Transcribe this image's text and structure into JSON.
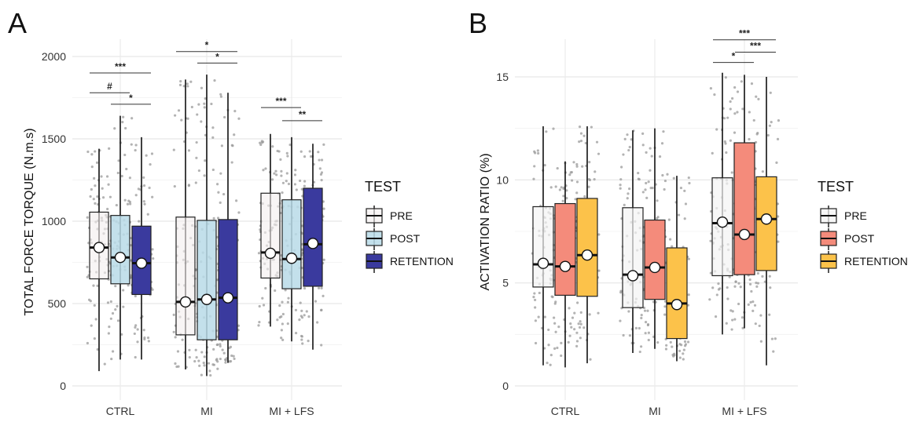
{
  "chart_data": [
    {
      "type": "box",
      "panel_label": "A",
      "ylabel": "TOTAL FORCE TORQUE (N.m.s)",
      "xlabel": "",
      "ylim": [
        0,
        2000
      ],
      "y_ticks": [
        0,
        500,
        1000,
        1500,
        2000
      ],
      "categories": [
        "CTRL",
        "MI",
        "MI + LFS"
      ],
      "legend_title": "TEST",
      "legend_position": "right",
      "series": [
        {
          "name": "PRE",
          "color": "#f3eeee",
          "fill_opacity": 0.6,
          "boxes": [
            {
              "whisker_low": 90,
              "q1": 650,
              "median": 840,
              "q3": 1055,
              "whisker_high": 1440,
              "mean": 840
            },
            {
              "whisker_low": 100,
              "q1": 310,
              "median": 510,
              "q3": 1025,
              "whisker_high": 1860,
              "mean": 510
            },
            {
              "whisker_low": 360,
              "q1": 655,
              "median": 810,
              "q3": 1170,
              "whisker_high": 1530,
              "mean": 805
            }
          ]
        },
        {
          "name": "POST",
          "color": "#b9dae8",
          "fill_opacity": 0.85,
          "boxes": [
            {
              "whisker_low": 160,
              "q1": 620,
              "median": 780,
              "q3": 1035,
              "whisker_high": 1640,
              "mean": 780
            },
            {
              "whisker_low": 60,
              "q1": 280,
              "median": 525,
              "q3": 1005,
              "whisker_high": 1890,
              "mean": 525
            },
            {
              "whisker_low": 270,
              "q1": 590,
              "median": 770,
              "q3": 1130,
              "whisker_high": 1510,
              "mean": 775
            }
          ]
        },
        {
          "name": "RETENTION",
          "color": "#3a3a9e",
          "fill_opacity": 1,
          "boxes": [
            {
              "whisker_low": 160,
              "q1": 555,
              "median": 745,
              "q3": 970,
              "whisker_high": 1510,
              "mean": 745
            },
            {
              "whisker_low": 140,
              "q1": 280,
              "median": 535,
              "q3": 1010,
              "whisker_high": 1780,
              "mean": 535
            },
            {
              "whisker_low": 220,
              "q1": 605,
              "median": 860,
              "q3": 1200,
              "whisker_high": 1470,
              "mean": 865
            }
          ]
        }
      ],
      "significance": [
        {
          "group": 0,
          "from": 0,
          "to": 2,
          "y": 1900,
          "label": "***"
        },
        {
          "group": 0,
          "from": 0,
          "to": 1,
          "y": 1780,
          "label": "#"
        },
        {
          "group": 0,
          "from": 1,
          "to": 2,
          "y": 1710,
          "label": "*"
        },
        {
          "group": 1,
          "from": 0,
          "to": 2,
          "y": 2030,
          "label": "*"
        },
        {
          "group": 1,
          "from": 1,
          "to": 2,
          "y": 1960,
          "label": "*"
        },
        {
          "group": 2,
          "from": 0,
          "to": 1,
          "y": 1690,
          "label": "***"
        },
        {
          "group": 2,
          "from": 1,
          "to": 2,
          "y": 1610,
          "label": "**"
        }
      ]
    },
    {
      "type": "box",
      "panel_label": "B",
      "ylabel": "ACTIVATION RATIO (%)",
      "xlabel": "",
      "ylim": [
        0,
        15.5
      ],
      "y_ticks": [
        0,
        5,
        10,
        15
      ],
      "categories": [
        "CTRL",
        "MI",
        "MI + LFS"
      ],
      "legend_title": "TEST",
      "legend_position": "right",
      "series": [
        {
          "name": "PRE",
          "color": "#f3f3f3",
          "fill_opacity": 0.7,
          "boxes": [
            {
              "whisker_low": 1.0,
              "q1": 4.8,
              "median": 5.9,
              "q3": 8.7,
              "whisker_high": 12.6,
              "mean": 5.95
            },
            {
              "whisker_low": 1.6,
              "q1": 3.8,
              "median": 5.4,
              "q3": 8.65,
              "whisker_high": 12.4,
              "mean": 5.35
            },
            {
              "whisker_low": 2.5,
              "q1": 5.35,
              "median": 7.9,
              "q3": 10.1,
              "whisker_high": 15.2,
              "mean": 7.95
            }
          ]
        },
        {
          "name": "POST",
          "color": "#f48b7b",
          "fill_opacity": 1,
          "boxes": [
            {
              "whisker_low": 0.9,
              "q1": 4.4,
              "median": 5.8,
              "q3": 8.85,
              "whisker_high": 10.9,
              "mean": 5.8
            },
            {
              "whisker_low": 1.8,
              "q1": 4.2,
              "median": 5.75,
              "q3": 8.05,
              "whisker_high": 12.5,
              "mean": 5.75
            },
            {
              "whisker_low": 2.8,
              "q1": 5.4,
              "median": 7.35,
              "q3": 11.8,
              "whisker_high": 15.1,
              "mean": 7.35
            }
          ]
        },
        {
          "name": "RETENTION",
          "color": "#fcc24a",
          "fill_opacity": 1,
          "boxes": [
            {
              "whisker_low": 1.1,
              "q1": 4.35,
              "median": 6.35,
              "q3": 9.1,
              "whisker_high": 12.6,
              "mean": 6.35
            },
            {
              "whisker_low": 1.2,
              "q1": 2.3,
              "median": 4.0,
              "q3": 6.7,
              "whisker_high": 10.2,
              "mean": 3.95
            },
            {
              "whisker_low": 1.0,
              "q1": 5.6,
              "median": 8.1,
              "q3": 10.15,
              "whisker_high": 15.0,
              "mean": 8.1
            }
          ]
        }
      ],
      "significance": [
        {
          "group": 2,
          "from": 0,
          "to": 2,
          "y": 16.8,
          "label": "***"
        },
        {
          "group": 2,
          "from": 1,
          "to": 2,
          "y": 16.2,
          "label": "***"
        },
        {
          "group": 2,
          "from": 0,
          "to": 1,
          "y": 15.7,
          "label": "*"
        }
      ]
    }
  ]
}
